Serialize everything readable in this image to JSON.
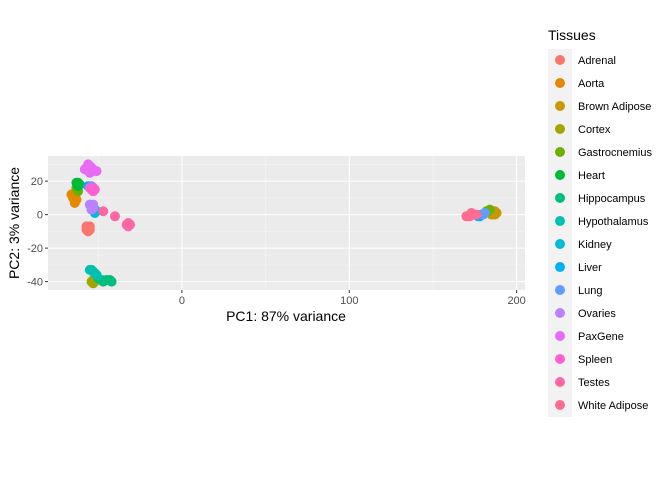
{
  "chart_data": {
    "type": "scatter",
    "title": "",
    "xlabel": "PC1: 87% variance",
    "ylabel": "PC2: 3% variance",
    "xlim": [
      -80,
      205
    ],
    "ylim": [
      -45,
      35
    ],
    "x_ticks": [
      0,
      100,
      200
    ],
    "y_ticks": [
      -40,
      -20,
      0,
      20
    ],
    "grid": true,
    "legend": {
      "title": "Tissues",
      "placement": "right"
    },
    "series": [
      {
        "name": "Adrenal",
        "color": "#F8766D",
        "points": [
          [
            -56,
            -8
          ],
          [
            -57,
            -9
          ],
          [
            -55,
            -7
          ],
          [
            -56,
            -10
          ],
          [
            -57,
            -7
          ],
          [
            -55,
            -9
          ]
        ]
      },
      {
        "name": "Aorta",
        "color": "#E58700",
        "points": [
          [
            -64,
            13
          ],
          [
            -65,
            10
          ],
          [
            -63,
            15
          ],
          [
            -64,
            7
          ],
          [
            -66,
            12
          ],
          [
            -63,
            9
          ]
        ]
      },
      {
        "name": "Brown Adipose",
        "color": "#C99800",
        "points": [
          [
            186,
            1
          ],
          [
            187,
            2
          ],
          [
            185,
            1
          ],
          [
            188,
            1
          ],
          [
            185,
            0
          ],
          [
            187,
            0
          ]
        ]
      },
      {
        "name": "Cortex",
        "color": "#A3A500",
        "points": [
          [
            -53,
            -39
          ],
          [
            -54,
            -40
          ],
          [
            -52,
            -40
          ],
          [
            -53,
            -41
          ]
        ]
      },
      {
        "name": "Gastrocnemius",
        "color": "#6BB100",
        "points": [
          [
            -62,
            14
          ],
          [
            -63,
            16
          ],
          [
            -62,
            18
          ],
          [
            183,
            2
          ],
          [
            184,
            3
          ],
          [
            182,
            2
          ]
        ]
      },
      {
        "name": "Heart",
        "color": "#00BA38",
        "points": [
          [
            -62,
            19
          ],
          [
            -61,
            18
          ],
          [
            -62,
            17
          ],
          [
            -63,
            19
          ]
        ]
      },
      {
        "name": "Hippocampus",
        "color": "#00BF7D",
        "points": [
          [
            -48,
            -39
          ],
          [
            -45,
            -39
          ],
          [
            -42,
            -40
          ],
          [
            -50,
            -38
          ],
          [
            -47,
            -40
          ],
          [
            -43,
            -39
          ]
        ]
      },
      {
        "name": "Hypothalamus",
        "color": "#00C0AF",
        "points": [
          [
            -54,
            -33
          ],
          [
            -52,
            -35
          ],
          [
            -51,
            -36
          ],
          [
            -53,
            -34
          ],
          [
            -55,
            -33
          ]
        ]
      },
      {
        "name": "Kidney",
        "color": "#00BCD8",
        "points": [
          [
            -52,
            3
          ],
          [
            -51,
            2
          ],
          [
            -53,
            4
          ],
          [
            -52,
            1
          ]
        ]
      },
      {
        "name": "Liver",
        "color": "#00B0F6",
        "points": [
          [
            -55,
            16
          ],
          [
            -54,
            15
          ],
          [
            -56,
            17
          ],
          [
            178,
            -1
          ],
          [
            179,
            0
          ],
          [
            177,
            -1
          ]
        ]
      },
      {
        "name": "Lung",
        "color": "#619CFF",
        "points": [
          [
            -54,
            17
          ],
          [
            -53,
            16
          ],
          [
            180,
            0
          ],
          [
            181,
            1
          ]
        ]
      },
      {
        "name": "Ovaries",
        "color": "#B983FF",
        "points": [
          [
            -54,
            5
          ],
          [
            -53,
            4
          ],
          [
            -55,
            6
          ],
          [
            -54,
            3
          ],
          [
            -53,
            6
          ]
        ]
      },
      {
        "name": "PaxGene",
        "color": "#E76BF3",
        "points": [
          [
            -57,
            28
          ],
          [
            -56,
            27
          ],
          [
            -55,
            29
          ],
          [
            -54,
            28
          ],
          [
            -58,
            27
          ],
          [
            -53,
            26
          ],
          [
            -55,
            25
          ],
          [
            -51,
            26
          ],
          [
            -56,
            30
          ]
        ]
      },
      {
        "name": "Spleen",
        "color": "#FD61D1",
        "points": [
          [
            -54,
            15
          ],
          [
            -53,
            14
          ],
          [
            -52,
            15
          ],
          [
            -55,
            16
          ],
          [
            -53,
            16
          ]
        ]
      },
      {
        "name": "Testes",
        "color": "#FF67A4",
        "points": [
          [
            -33,
            -6
          ],
          [
            -32,
            -7
          ],
          [
            -31,
            -6
          ],
          [
            -32,
            -5
          ],
          [
            -40,
            -1
          ],
          [
            -47,
            2
          ]
        ]
      },
      {
        "name": "White Adipose",
        "color": "#FF6C91",
        "points": [
          [
            172,
            -1
          ],
          [
            174,
            0
          ],
          [
            176,
            0
          ],
          [
            173,
            1
          ],
          [
            170,
            -1
          ]
        ]
      }
    ]
  }
}
